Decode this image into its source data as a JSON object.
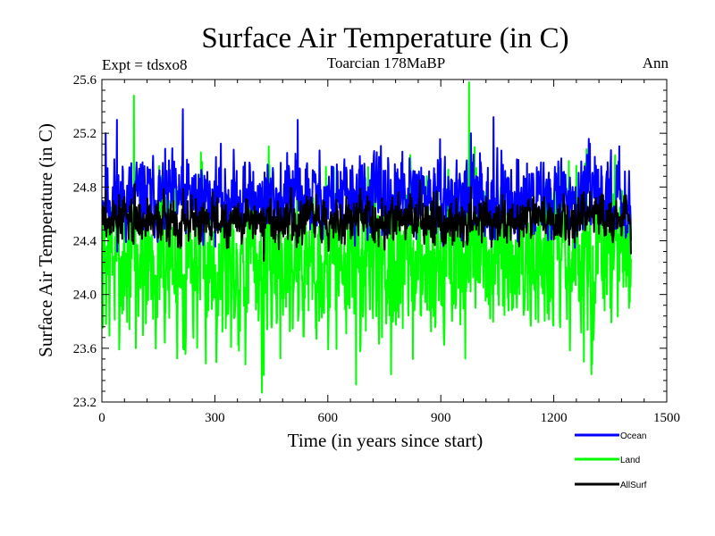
{
  "chart_data": {
    "type": "line",
    "title": "Surface Air Temperature (in C)",
    "subtitle_left": "Expt = tdsxo8",
    "subtitle_center": "Toarcian 178MaBP",
    "subtitle_right": "Ann",
    "xlabel": "Time (in years since start)",
    "ylabel": "Surface Air Temperature (in C)",
    "xlim": [
      0,
      1500
    ],
    "ylim": [
      23.2,
      25.6
    ],
    "x_ticks": [
      0,
      300,
      600,
      900,
      1200,
      1500
    ],
    "x_tick_labels": [
      "0",
      "300",
      "600",
      "900",
      "1200",
      "1500"
    ],
    "y_ticks": [
      23.2,
      23.6,
      24.0,
      24.4,
      24.8,
      25.2,
      25.6
    ],
    "y_tick_labels": [
      "23.2",
      "23.6",
      "24.0",
      "24.4",
      "24.8",
      "25.2",
      "25.6"
    ],
    "x_range_data": [
      1,
      1405
    ],
    "series": [
      {
        "name": "Ocean",
        "color": "#0000ff",
        "generator": {
          "mean": 24.72,
          "amplitude": 0.2,
          "min": 24.2,
          "max": 25.38,
          "seed": 11
        },
        "keypoints": [
          [
            0,
            24.7
          ],
          [
            10,
            25.2
          ],
          [
            40,
            25.3
          ],
          [
            215,
            25.38
          ],
          [
            430,
            24.3
          ],
          [
            520,
            25.3
          ],
          [
            980,
            25.2
          ],
          [
            1040,
            25.32
          ],
          [
            1405,
            24.4
          ]
        ]
      },
      {
        "name": "Land",
        "color": "#00ff00",
        "generator": {
          "mean": 24.25,
          "amplitude": 0.42,
          "min": 23.27,
          "max": 25.58,
          "seed": 7
        },
        "keypoints": [
          [
            0,
            23.8
          ],
          [
            85,
            25.48
          ],
          [
            90,
            23.6
          ],
          [
            425,
            23.27
          ],
          [
            430,
            23.4
          ],
          [
            675,
            23.33
          ],
          [
            975,
            25.58
          ],
          [
            1280,
            23.5
          ],
          [
            1400,
            23.9
          ]
        ]
      },
      {
        "name": "AllSurf",
        "color": "#000000",
        "generator": {
          "mean": 24.56,
          "amplitude": 0.12,
          "min": 24.22,
          "max": 24.85,
          "seed": 3
        },
        "keypoints": [
          [
            0,
            24.6
          ],
          [
            430,
            24.25
          ],
          [
            980,
            24.8
          ],
          [
            1405,
            24.3
          ]
        ]
      }
    ],
    "legend": {
      "position": "bottom-right",
      "entries": [
        "Ocean",
        "Land",
        "AllSurf"
      ]
    }
  }
}
